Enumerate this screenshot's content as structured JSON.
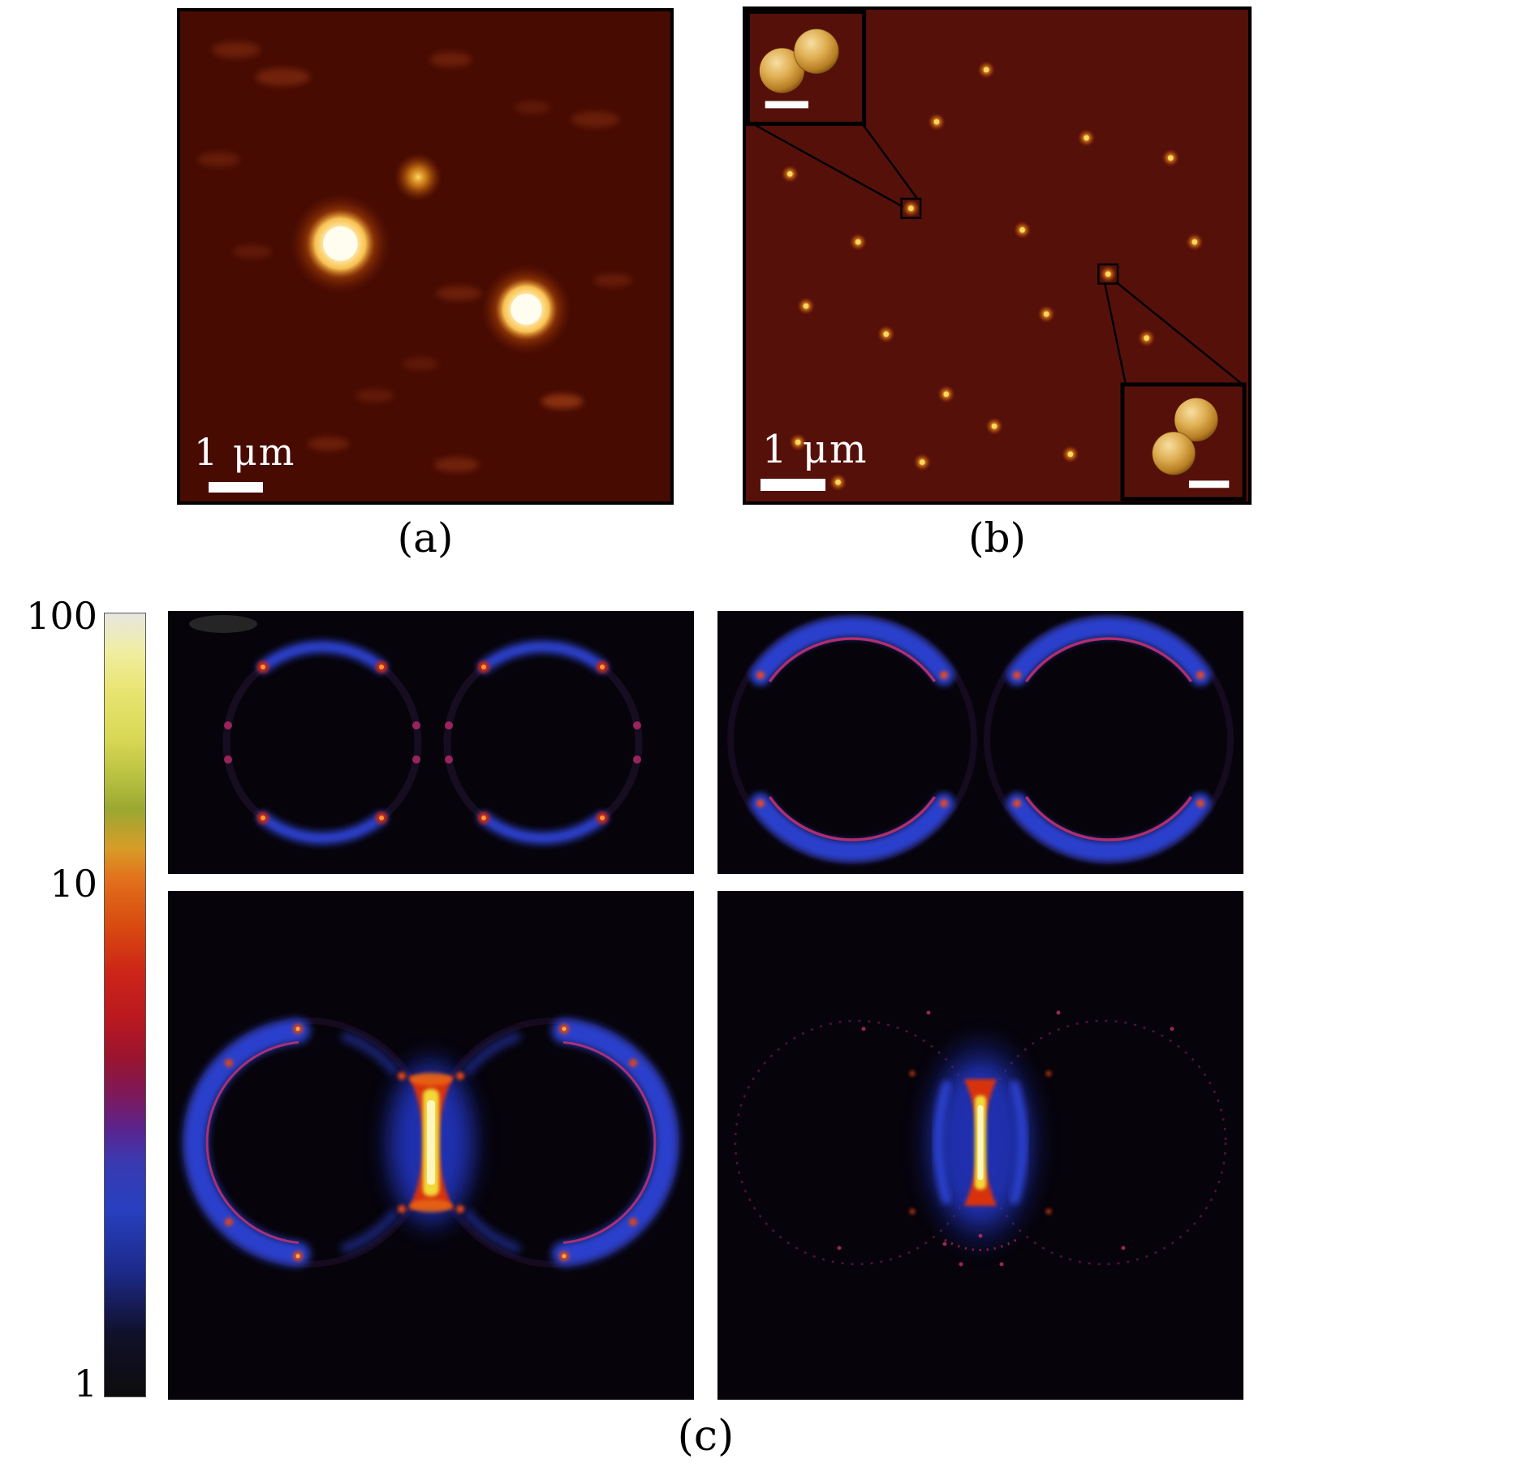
{
  "figure": {
    "panels": {
      "a": {
        "label": "(a)",
        "scale_bar_label": "1 μm",
        "bright_spots": [
          [
            200,
            290,
            30
          ],
          [
            432,
            372,
            27
          ]
        ],
        "medium_spots": [
          [
            297,
            207,
            15
          ]
        ],
        "faint_spots": [
          [
            70,
            48,
            30,
            10,
            0.3
          ],
          [
            128,
            82,
            34,
            11,
            0.35
          ],
          [
            338,
            60,
            26,
            9,
            0.3
          ],
          [
            518,
            135,
            30,
            10,
            0.28
          ],
          [
            48,
            185,
            26,
            9,
            0.25
          ],
          [
            348,
            352,
            28,
            9,
            0.3
          ],
          [
            477,
            487,
            26,
            9,
            0.55
          ],
          [
            185,
            540,
            26,
            8,
            0.3
          ],
          [
            345,
            566,
            28,
            9,
            0.35
          ],
          [
            540,
            336,
            24,
            8,
            0.25
          ],
          [
            243,
            480,
            24,
            8,
            0.22
          ],
          [
            440,
            120,
            22,
            8,
            0.2
          ],
          [
            90,
            300,
            24,
            8,
            0.22
          ],
          [
            300,
            440,
            22,
            8,
            0.2
          ]
        ]
      },
      "b": {
        "label": "(b)",
        "scale_bar_label": "1 μm",
        "dots": [
          [
            300,
            75
          ],
          [
            238,
            140
          ],
          [
            425,
            160
          ],
          [
            530,
            185
          ],
          [
            55,
            205
          ],
          [
            206,
            248
          ],
          [
            140,
            290
          ],
          [
            345,
            275
          ],
          [
            560,
            290
          ],
          [
            75,
            370
          ],
          [
            175,
            405
          ],
          [
            375,
            380
          ],
          [
            452,
            330
          ],
          [
            500,
            410
          ],
          [
            250,
            480
          ],
          [
            65,
            540
          ],
          [
            220,
            565
          ],
          [
            405,
            555
          ],
          [
            550,
            520
          ],
          [
            115,
            590
          ],
          [
            310,
            520
          ]
        ]
      },
      "c": {
        "label": "(c)",
        "colorbar_ticks": [
          "100",
          "10",
          "1"
        ]
      }
    },
    "colors": {
      "afm_background_a": "#470b02",
      "afm_background_b": "#56100a",
      "particle_bright": "#fffdf0",
      "particle_gold": "#dfae52",
      "sim_background": "#06030a",
      "sim_blue": "#2b41cc",
      "sim_hot_core": "#f2d838"
    }
  }
}
